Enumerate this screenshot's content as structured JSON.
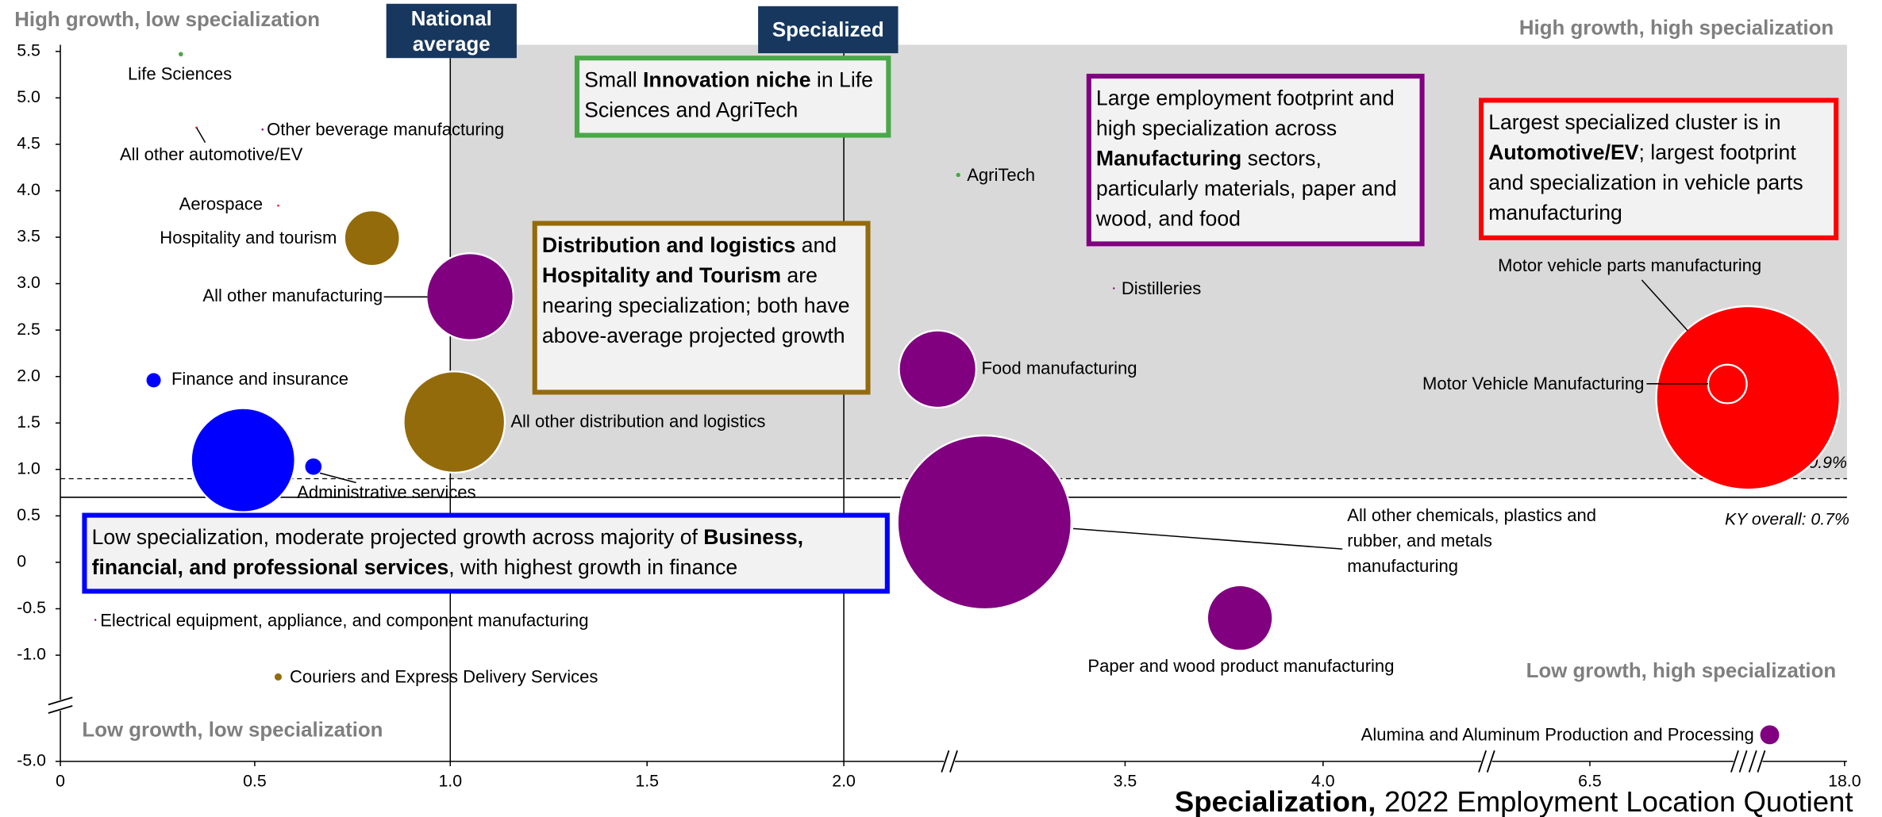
{
  "chart_data": {
    "type": "scatter",
    "x_title": [
      "Specialization,",
      "2022 Employment Location Quotient"
    ],
    "xlim": [
      0,
      18
    ],
    "xticks": [
      0,
      0.5,
      {
        "value": 1,
        "label": "1.0"
      },
      1.5,
      {
        "value": 2,
        "label": "2.0"
      },
      3.5,
      {
        "value": 4,
        "label": "4.0"
      },
      6.5,
      {
        "value": 18,
        "label": "18.0"
      }
    ],
    "ylim": [
      -5,
      5.5
    ],
    "yticks": [
      {
        "value": -5,
        "label": "-5.0"
      },
      {
        "value": -1,
        "label": "-1.0"
      },
      -0.5,
      0,
      0.5,
      {
        "value": 1,
        "label": "1.0"
      },
      1.5,
      {
        "value": 2,
        "label": "2.0"
      },
      2.5,
      {
        "value": 3,
        "label": "3.0"
      },
      3.5,
      {
        "value": 4,
        "label": "4.0"
      },
      4.5,
      {
        "value": 5,
        "label": "5.0"
      },
      5.5
    ],
    "points": {
      "names": [
        "Life Sciences",
        "Other beverage manufacturing",
        "All other automotive/EV",
        "Aerospace",
        "Hospitality and tourism",
        "All other manufacturing",
        "Finance and insurance",
        null,
        "Administrative services",
        "All other distribution and logistics",
        "AgriTech",
        "Distilleries",
        "Food manufacturing",
        "Motor vehicle parts manufacturing",
        "Motor Vehicle Manufacturing",
        "All other chemicals, plastics and rubber, and metals manufacturing",
        "Paper and wood product manufacturing",
        "Electrical equipment, appliance, and component manufacturing",
        "Couriers and Express Delivery Services",
        "Alumina and Aluminum Production and Processing"
      ],
      "x": [
        0.31,
        0.52,
        0.35,
        0.56,
        0.8,
        1.05,
        0.24,
        0.47,
        0.65,
        1.01,
        2.61,
        3.44,
        2.5,
        13.64,
        12.71,
        2.75,
        3.79,
        0.09,
        0.56,
        14.62
      ],
      "y": [
        5.47,
        4.66,
        4.68,
        3.84,
        3.49,
        2.86,
        1.96,
        1.1,
        1.03,
        1.51,
        4.17,
        2.95,
        2.08,
        1.77,
        1.92,
        0.43,
        -0.6,
        -0.62,
        -1.82,
        -4.0
      ],
      "sizes": [
        0.25,
        0.06,
        0.06,
        0.06,
        33,
        81,
        2.3,
        116,
        3,
        110,
        0.25,
        0.06,
        64,
        361,
        16,
        324,
        46,
        0.06,
        0.6,
        4
      ],
      "colors": [
        "#4aa84a",
        "#800080",
        "#ff0000",
        "#ff0000",
        "#946b0b",
        "#800080",
        "#0000ff",
        "#0000ff",
        "#0000ff",
        "#946b0b",
        "#4aa84a",
        "#800080",
        "#800080",
        "#ff0000",
        "#ff0000",
        "#800080",
        "#800080",
        "#800080",
        "#946b0b",
        "#800080"
      ]
    },
    "reference_lines": [
      {
        "axis": "x",
        "value": 1,
        "label": "National average"
      },
      {
        "axis": "x",
        "value": 2,
        "label": "Specialized"
      },
      {
        "axis": "y",
        "value": 0.9,
        "label": "US overall: 0.9%",
        "style": "dashed"
      },
      {
        "axis": "y",
        "value": 0.7,
        "label": "KY overall: 0.7%",
        "style": "solid"
      }
    ],
    "quadrants": [
      "High growth, low specialization",
      "High growth, high specialization",
      "Low growth, high specialization",
      "Low growth, low specialization"
    ],
    "annotations": [
      {
        "color": "#4aa84a",
        "parts": [
          {
            "text": "Small "
          },
          {
            "text": "Innovation niche",
            "bold": true
          },
          {
            "text": " in Life Sciences and AgriTech"
          }
        ]
      },
      {
        "color": "#946b0b",
        "parts": [
          {
            "text": "Distribution and logistics",
            "bold": true
          },
          {
            "text": " and "
          },
          {
            "text": "Hospitality and Tourism",
            "bold": true
          },
          {
            "text": " are nearing specialization; both have above-average projected growth"
          }
        ]
      },
      {
        "color": "#800080",
        "parts": [
          {
            "text": "Large employment footprint and high specialization across "
          },
          {
            "text": "Manufacturing",
            "bold": true
          },
          {
            "text": " sectors, particularly materials, paper and wood, and food"
          }
        ]
      },
      {
        "color": "#ff0000",
        "parts": [
          {
            "text": "Largest specialized cluster is in "
          },
          {
            "text": "Automotive/EV",
            "bold": true
          },
          {
            "text": "; largest footprint and specialization in vehicle parts manufacturing"
          }
        ]
      },
      {
        "color": "#0000ff",
        "parts": [
          {
            "text": "Low specialization, moderate projected growth across majority of "
          },
          {
            "text": "Business, financial, and professional services",
            "bold": true
          },
          {
            "text": ", with highest growth in finance"
          }
        ]
      }
    ]
  }
}
